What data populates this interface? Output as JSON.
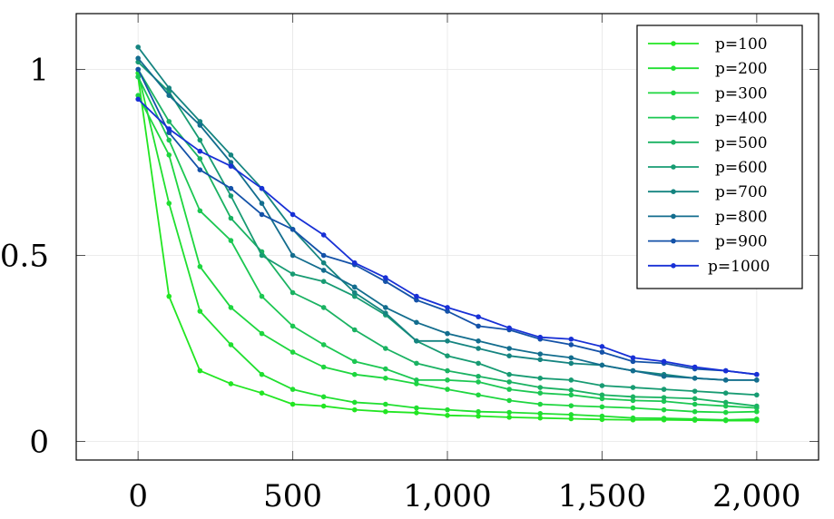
{
  "chart_data": {
    "type": "line",
    "title": "",
    "xlabel": "",
    "ylabel": "",
    "xlim": [
      -200,
      2200
    ],
    "ylim": [
      -0.05,
      1.15
    ],
    "x_ticks": [
      0,
      500,
      1000,
      1500,
      2000
    ],
    "x_tick_labels": [
      "0",
      "500",
      "1,000",
      "1,500",
      "2,000"
    ],
    "y_ticks": [
      0,
      0.5,
      1
    ],
    "y_tick_labels": [
      "0",
      "0.5",
      "1"
    ],
    "grid": true,
    "legend_position": "top-right",
    "x": [
      0,
      100,
      200,
      300,
      400,
      500,
      600,
      700,
      800,
      900,
      1000,
      1100,
      1200,
      1300,
      1400,
      1500,
      1600,
      1700,
      1800,
      1900,
      2000
    ],
    "series": [
      {
        "name": "p=100",
        "color": "#22e622",
        "values": [
          0.98,
          0.39,
          0.19,
          0.155,
          0.13,
          0.1,
          0.095,
          0.085,
          0.08,
          0.077,
          0.07,
          0.068,
          0.065,
          0.063,
          0.061,
          0.059,
          0.058,
          0.058,
          0.057,
          0.056,
          0.056
        ]
      },
      {
        "name": "p=200",
        "color": "#20df30",
        "values": [
          0.99,
          0.64,
          0.35,
          0.26,
          0.18,
          0.14,
          0.12,
          0.105,
          0.1,
          0.09,
          0.085,
          0.08,
          0.078,
          0.075,
          0.072,
          0.068,
          0.063,
          0.062,
          0.06,
          0.058,
          0.06
        ]
      },
      {
        "name": "p=300",
        "color": "#1ed63f",
        "values": [
          0.93,
          0.77,
          0.47,
          0.36,
          0.29,
          0.24,
          0.2,
          0.18,
          0.17,
          0.155,
          0.14,
          0.125,
          0.11,
          0.1,
          0.096,
          0.093,
          0.09,
          0.085,
          0.08,
          0.078,
          0.08
        ]
      },
      {
        "name": "p=400",
        "color": "#1cc752",
        "values": [
          0.98,
          0.81,
          0.62,
          0.54,
          0.39,
          0.31,
          0.26,
          0.215,
          0.195,
          0.165,
          0.165,
          0.16,
          0.14,
          0.13,
          0.125,
          0.115,
          0.11,
          0.108,
          0.1,
          0.095,
          0.09
        ]
      },
      {
        "name": "p=500",
        "color": "#1ab262",
        "values": [
          1.0,
          0.86,
          0.76,
          0.6,
          0.51,
          0.4,
          0.36,
          0.3,
          0.25,
          0.21,
          0.19,
          0.175,
          0.16,
          0.145,
          0.138,
          0.125,
          0.12,
          0.118,
          0.115,
          0.105,
          0.095
        ]
      },
      {
        "name": "p=600",
        "color": "#179b72",
        "values": [
          1.02,
          0.94,
          0.81,
          0.66,
          0.5,
          0.45,
          0.43,
          0.39,
          0.34,
          0.27,
          0.23,
          0.21,
          0.18,
          0.17,
          0.165,
          0.15,
          0.145,
          0.14,
          0.135,
          0.13,
          0.125
        ]
      },
      {
        "name": "p=700",
        "color": "#158480",
        "values": [
          1.06,
          0.95,
          0.86,
          0.77,
          0.68,
          0.57,
          0.48,
          0.4,
          0.345,
          0.27,
          0.27,
          0.25,
          0.23,
          0.22,
          0.21,
          0.205,
          0.19,
          0.18,
          0.17,
          0.165,
          0.165
        ]
      },
      {
        "name": "p=800",
        "color": "#136d8e",
        "values": [
          1.03,
          0.93,
          0.85,
          0.75,
          0.64,
          0.5,
          0.46,
          0.415,
          0.36,
          0.32,
          0.29,
          0.27,
          0.25,
          0.235,
          0.225,
          0.205,
          0.19,
          0.175,
          0.17,
          0.165,
          0.165
        ]
      },
      {
        "name": "p=900",
        "color": "#1452a8",
        "values": [
          1.0,
          0.83,
          0.73,
          0.68,
          0.61,
          0.57,
          0.5,
          0.475,
          0.43,
          0.38,
          0.35,
          0.31,
          0.3,
          0.275,
          0.26,
          0.24,
          0.215,
          0.21,
          0.195,
          0.19,
          0.18
        ]
      },
      {
        "name": "p=1000",
        "color": "#1830d6",
        "values": [
          0.92,
          0.84,
          0.78,
          0.74,
          0.68,
          0.61,
          0.555,
          0.48,
          0.44,
          0.39,
          0.36,
          0.335,
          0.305,
          0.28,
          0.275,
          0.255,
          0.225,
          0.215,
          0.2,
          0.19,
          0.18
        ]
      }
    ]
  }
}
